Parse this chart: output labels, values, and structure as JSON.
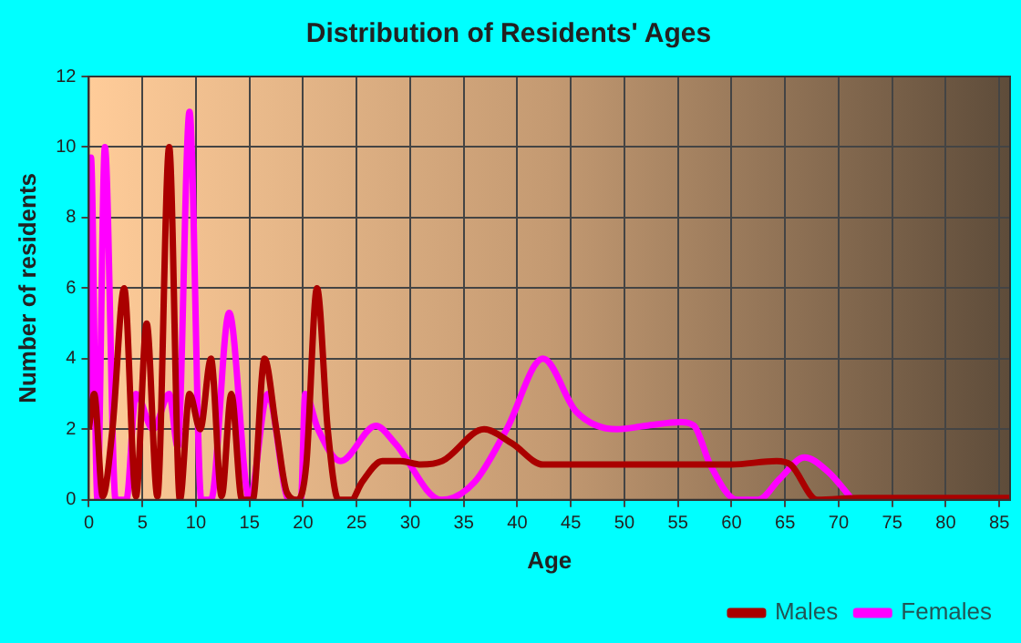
{
  "chart_data": {
    "type": "line",
    "title": "Distribution of Residents' Ages",
    "xlabel": "Age",
    "ylabel": "Number of residents",
    "xlim": [
      0,
      86
    ],
    "xticks": [
      0,
      5,
      10,
      15,
      20,
      25,
      30,
      35,
      40,
      45,
      50,
      55,
      60,
      65,
      70,
      75,
      80,
      85
    ],
    "ylim": [
      0,
      12
    ],
    "yticks": [
      0,
      2,
      4,
      6,
      8,
      10,
      12
    ],
    "grid": true,
    "legend": "bottom right",
    "marker": "none",
    "line_style": "solid",
    "series": [
      {
        "name": "Males",
        "color": "#aa0000",
        "x": [
          0,
          0.5,
          1.3,
          2.2,
          3.3,
          4.4,
          5.4,
          6.4,
          7.5,
          8.5,
          9.4,
          10.4,
          11.4,
          12.4,
          13.3,
          14.3,
          15.3,
          16.4,
          17.5,
          18.5,
          19.5,
          20.3,
          21.3,
          22.3,
          23.3,
          24.5,
          25.5,
          27.4,
          29.1,
          31,
          33,
          36.9,
          39.5,
          42.4,
          45,
          50,
          55,
          60,
          64.2,
          65.5,
          68,
          72,
          78,
          86
        ],
        "values": [
          2,
          3,
          0.1,
          2,
          6,
          0.1,
          5,
          0.1,
          10,
          0,
          3,
          2,
          4,
          0.1,
          3,
          0,
          0,
          4,
          2,
          0.2,
          0,
          1,
          6,
          2,
          0,
          0,
          0.5,
          1.1,
          1.1,
          1,
          1.1,
          2,
          1.6,
          1,
          1,
          1,
          1,
          1,
          1.1,
          1,
          0,
          0.05,
          0.05,
          0.05
        ]
      },
      {
        "name": "Females",
        "color": "#ff00ff",
        "x": [
          0,
          0.2,
          0.8,
          1.5,
          2.5,
          3.5,
          4.4,
          6,
          7.5,
          8.3,
          9.4,
          10.5,
          11.4,
          13.1,
          15,
          16.7,
          18.7,
          19.8,
          20.2,
          21.4,
          23.5,
          26.8,
          28.6,
          32.9,
          36,
          39,
          42.4,
          45.5,
          49.3,
          52,
          55.3,
          56.5,
          58,
          60.5,
          62.5,
          64.5,
          66.8,
          69,
          71.3
        ],
        "values": [
          2,
          9.7,
          0,
          10,
          0,
          0,
          3,
          2,
          3,
          1.5,
          11,
          0,
          0,
          5.3,
          0,
          3,
          0,
          0,
          3,
          2,
          1.1,
          2.1,
          1.6,
          0,
          0.5,
          2,
          4,
          2.5,
          2,
          2.1,
          2.2,
          2.1,
          1,
          0,
          0,
          0.6,
          1.2,
          0.8,
          0
        ]
      }
    ]
  }
}
